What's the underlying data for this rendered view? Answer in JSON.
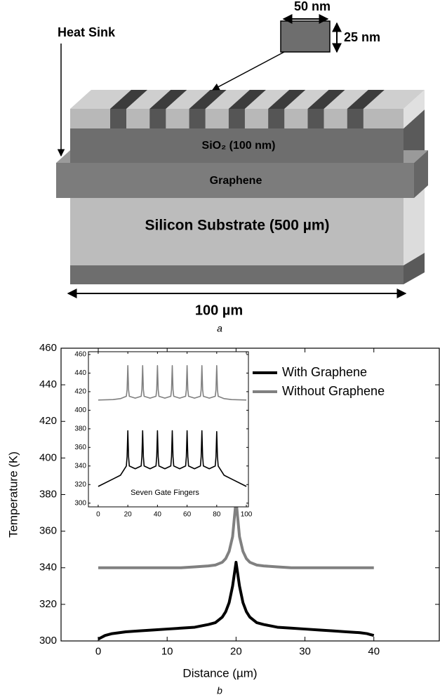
{
  "diagram": {
    "heat_sink": "Heat Sink",
    "width_label": "50 nm",
    "height_label": "25 nm",
    "oxide": "SiO₂ (100 nm)",
    "graphene": "Graphene",
    "substrate": "Silicon Substrate (500 µm)",
    "length": "100 µm",
    "caption": "a"
  },
  "chart_data": [
    {
      "type": "line",
      "caption": "b",
      "x_label": "Distance (µm)",
      "y_label": "Temperature (K)",
      "xlim": [
        -5.4,
        49.5
      ],
      "xticks": [
        0,
        10,
        20,
        30,
        40
      ],
      "ylim": [
        300,
        460
      ],
      "yticks": [
        300,
        320,
        340,
        360,
        380,
        400,
        420,
        440,
        460
      ],
      "legend": "upper right",
      "x": [
        0,
        0.5,
        1,
        2,
        4,
        6,
        8,
        10,
        12,
        14,
        16,
        17,
        18,
        18.5,
        19,
        19.5,
        20,
        20.5,
        21,
        21.5,
        22,
        23,
        24,
        26,
        28,
        30,
        32,
        34,
        36,
        38,
        39,
        39.5,
        40
      ],
      "series": [
        {
          "name": "With Graphene",
          "color": "#000000",
          "values": [
            301,
            302,
            303,
            304,
            305,
            305.5,
            306,
            306.5,
            307,
            307.5,
            309,
            310,
            313,
            316,
            321,
            330,
            343,
            330,
            321,
            316,
            313,
            310,
            309,
            307.5,
            307,
            306.5,
            306,
            305.5,
            305,
            304.5,
            304,
            303.5,
            303
          ]
        },
        {
          "name": "Without Graphene",
          "color": "#808080",
          "values": [
            340,
            340,
            340,
            340,
            340,
            340,
            340,
            340,
            340,
            340.5,
            341,
            341.5,
            343,
            345,
            349,
            357,
            377,
            357,
            349,
            345,
            343,
            341.5,
            341,
            340.5,
            340,
            340,
            340,
            340,
            340,
            340,
            340,
            340,
            340
          ]
        }
      ]
    },
    {
      "type": "line",
      "annotation": "Seven Gate Fingers",
      "xlim": [
        -6.6,
        101.4
      ],
      "xticks": [
        0,
        20,
        40,
        60,
        80,
        100
      ],
      "ylim": [
        296,
        463
      ],
      "yticks": [
        300,
        320,
        340,
        360,
        380,
        400,
        420,
        440,
        460
      ],
      "x": [
        0,
        10,
        15,
        19,
        19.5,
        20,
        20.5,
        21,
        25,
        29,
        29.5,
        30,
        30.5,
        31,
        35,
        39,
        39.5,
        40,
        40.5,
        41,
        45,
        49,
        49.5,
        50,
        50.5,
        51,
        55,
        59,
        59.5,
        60,
        60.5,
        61,
        65,
        69,
        69.5,
        70,
        70.5,
        71,
        75,
        79,
        79.5,
        80,
        80.5,
        81,
        85,
        90,
        100
      ],
      "series": [
        {
          "color": "#808080",
          "values": [
            411,
            411.5,
            412.5,
            415,
            422,
            448,
            422,
            415,
            413,
            415,
            422,
            448,
            422,
            415,
            413,
            415,
            422,
            448,
            422,
            415,
            413,
            415,
            422,
            448,
            422,
            415,
            413,
            415,
            422,
            448,
            422,
            415,
            413,
            415,
            422,
            448,
            422,
            415,
            413,
            415,
            422,
            448,
            422,
            415,
            412.5,
            411.5,
            411
          ]
        },
        {
          "color": "#000000",
          "values": [
            318,
            326,
            330,
            340,
            350,
            378,
            350,
            340,
            337,
            340,
            350,
            378,
            350,
            340,
            337,
            340,
            350,
            378,
            350,
            340,
            337,
            340,
            350,
            378,
            350,
            340,
            337,
            340,
            350,
            378,
            350,
            340,
            337,
            340,
            350,
            378,
            350,
            340,
            337,
            340,
            350,
            377,
            350,
            340,
            330,
            326,
            318
          ]
        }
      ]
    }
  ]
}
